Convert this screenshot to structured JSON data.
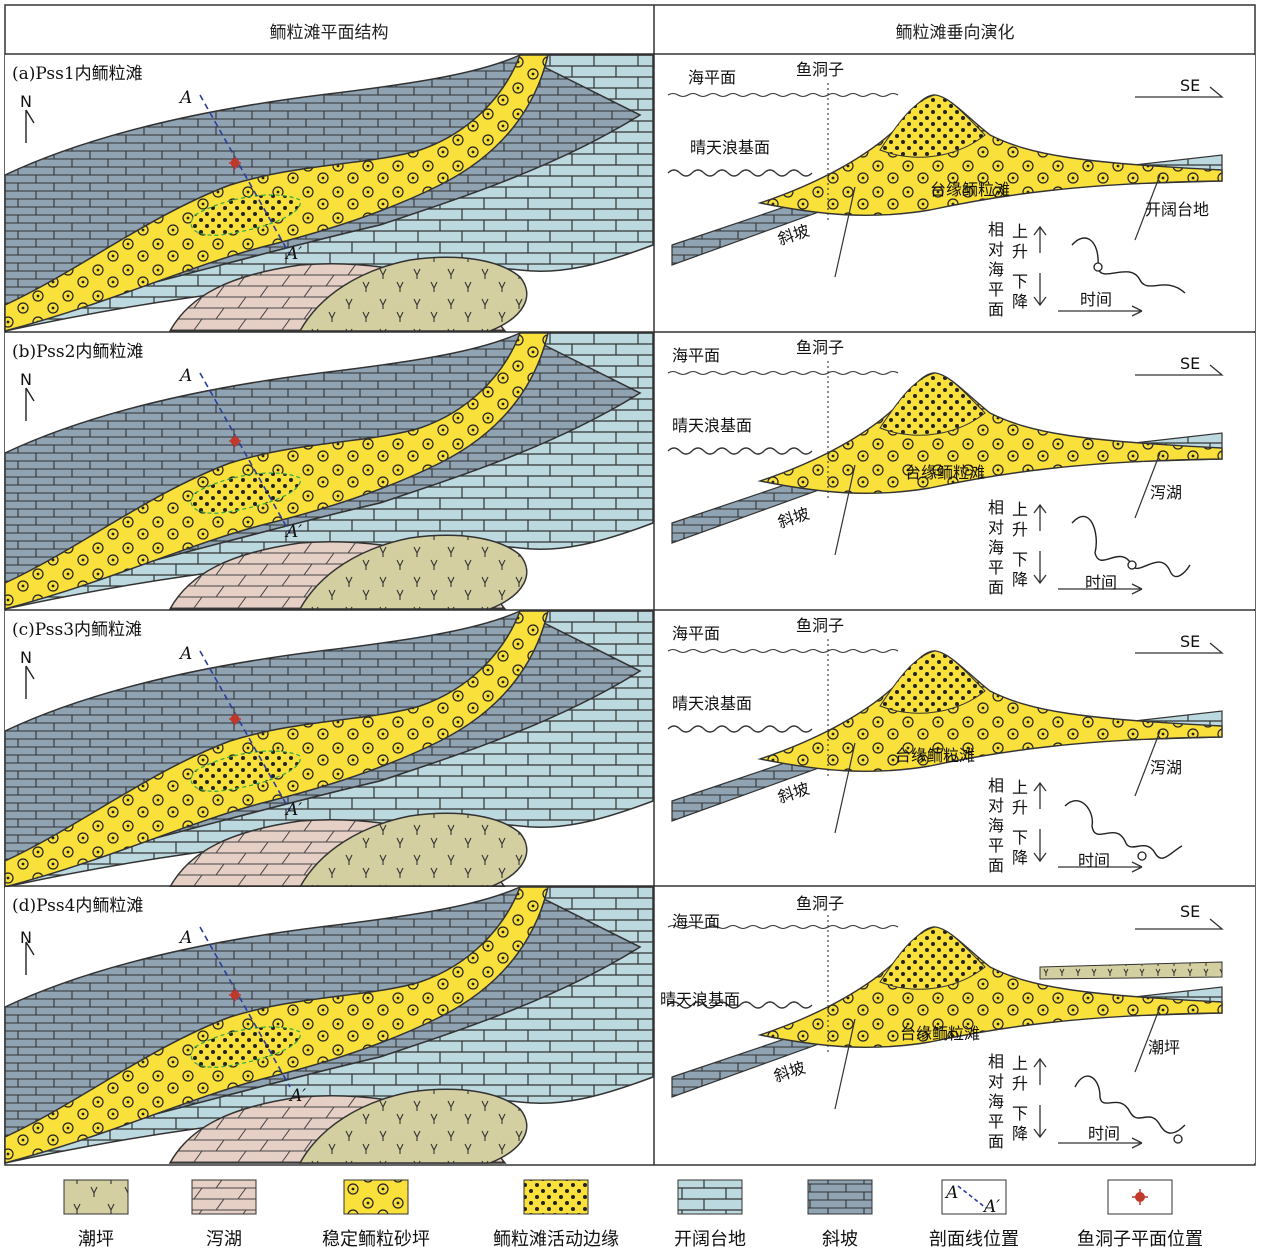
{
  "header": {
    "left": "鲕粒滩平面结构",
    "right": "鲕粒滩垂向演化"
  },
  "panels": [
    {
      "label": "(a)Pss1内鲕粒滩",
      "right_zone": "开阔台地"
    },
    {
      "label": "(b)Pss2内鲕粒滩",
      "right_zone": "泻湖"
    },
    {
      "label": "(c)Pss3内鲕粒滩",
      "right_zone": "泻湖"
    },
    {
      "label": "(d)Pss4内鲕粒滩",
      "right_zone": "潮坪"
    }
  ],
  "map_labels": {
    "north": "N",
    "a": "A",
    "a_prime": "A′"
  },
  "section_labels": {
    "sea_level": "海平面",
    "fwwb": "晴天浪基面",
    "well": "鱼洞子",
    "direction": "SE",
    "shoal": "台缘鲕粒滩",
    "slope": "斜坡",
    "rsl": [
      "相",
      "对",
      "海",
      "平",
      "面"
    ],
    "rise": [
      "上",
      "升"
    ],
    "fall": [
      "下",
      "降"
    ],
    "time": "时间"
  },
  "legend": [
    {
      "key": "tidal_flat",
      "label": "潮坪"
    },
    {
      "key": "lagoon",
      "label": "泻湖"
    },
    {
      "key": "stable_shoal",
      "label": "稳定鲕粒砂坪"
    },
    {
      "key": "active_margin",
      "label": "鲕粒滩活动边缘"
    },
    {
      "key": "open_platform",
      "label": "开阔台地"
    },
    {
      "key": "slope",
      "label": "斜坡"
    },
    {
      "key": "section_line",
      "label": "剖面线位置"
    },
    {
      "key": "well_location",
      "label": "鱼洞子平面位置"
    }
  ],
  "colors": {
    "slope": "#8fa3b3",
    "open_platform": "#bcd9e0",
    "lagoon": "#e6d0c6",
    "tidal_flat": "#d3cfa0",
    "shoal": "#f9e03a",
    "well": "#c0392b"
  }
}
